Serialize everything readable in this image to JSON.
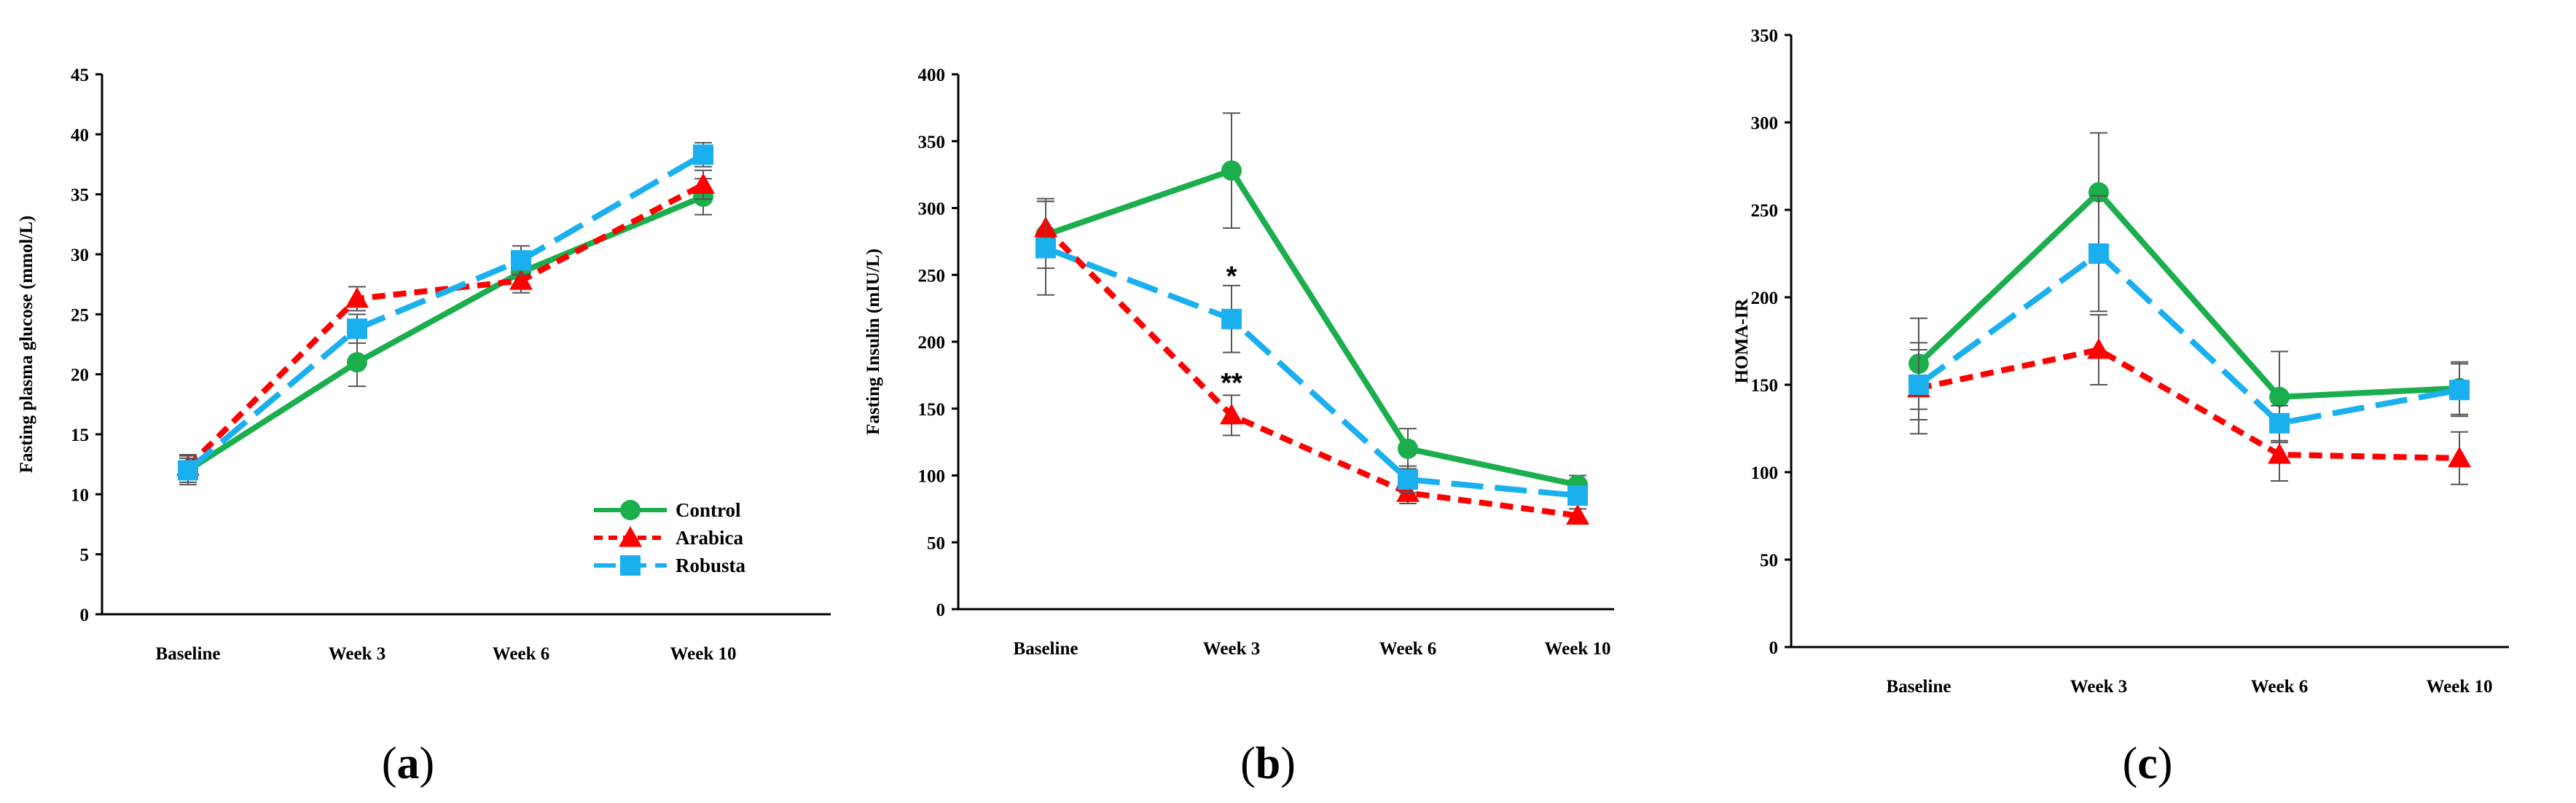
{
  "chart_data": [
    {
      "type": "line",
      "panel_label": "(a)",
      "title": "",
      "xlabel": "",
      "ylabel": "Fasting plasma glucose (mmol/L)",
      "ylim": [
        0,
        45
      ],
      "yticks": [
        0,
        5,
        10,
        15,
        20,
        25,
        30,
        35,
        40,
        45
      ],
      "categories": [
        "Baseline",
        "Week 3",
        "Week 6",
        "Week 10"
      ],
      "legend_position": "bottom-right",
      "series": [
        {
          "name": "Control",
          "values": [
            12.0,
            21.0,
            28.5,
            34.8
          ],
          "errors": [
            1.2,
            2.0,
            1.0,
            1.5
          ]
        },
        {
          "name": "Arabica",
          "values": [
            12.3,
            26.3,
            27.8,
            35.8
          ],
          "errors": [
            1.0,
            1.0,
            1.0,
            1.2
          ]
        },
        {
          "name": "Robusta",
          "values": [
            12.0,
            23.8,
            29.5,
            38.3
          ],
          "errors": [
            1.0,
            1.2,
            1.2,
            1.0
          ]
        }
      ],
      "annotations": []
    },
    {
      "type": "line",
      "panel_label": "(b)",
      "title": "",
      "xlabel": "",
      "ylabel": "Fasting Insulin (mIU/L)",
      "ylim": [
        0,
        400
      ],
      "yticks": [
        0,
        50,
        100,
        150,
        200,
        250,
        300,
        350,
        400
      ],
      "categories": [
        "Baseline",
        "Week 3",
        "Week 6",
        "Week 10"
      ],
      "legend_position": "none",
      "series": [
        {
          "name": "Control",
          "values": [
            280,
            328,
            120,
            93
          ],
          "errors": [
            25,
            43,
            15,
            7
          ]
        },
        {
          "name": "Arabica",
          "values": [
            285,
            145,
            87,
            70
          ],
          "errors": [
            22,
            15,
            8,
            5
          ]
        },
        {
          "name": "Robusta",
          "values": [
            270,
            217,
            97,
            85
          ],
          "errors": [
            35,
            25,
            10,
            7
          ]
        }
      ],
      "annotations": [
        {
          "text": "*",
          "category": "Week 3",
          "y": 250
        },
        {
          "text": "**",
          "category": "Week 3",
          "y": 170
        }
      ]
    },
    {
      "type": "line",
      "panel_label": "(c)",
      "title": "",
      "xlabel": "",
      "ylabel": "HOMA-IR",
      "ylim": [
        0,
        350
      ],
      "yticks": [
        0,
        50,
        100,
        150,
        200,
        250,
        300,
        350
      ],
      "categories": [
        "Baseline",
        "Week 3",
        "Week 6",
        "Week 10"
      ],
      "legend_position": "none",
      "series": [
        {
          "name": "Control",
          "values": [
            162,
            260,
            143,
            148
          ],
          "errors": [
            26,
            34,
            26,
            15
          ]
        },
        {
          "name": "Arabica",
          "values": [
            148,
            170,
            110,
            108
          ],
          "errors": [
            26,
            20,
            15,
            15
          ]
        },
        {
          "name": "Robusta",
          "values": [
            150,
            225,
            128,
            147
          ],
          "errors": [
            20,
            33,
            10,
            15
          ]
        }
      ],
      "annotations": []
    }
  ],
  "series_styles": [
    {
      "name": "Control",
      "color": "#1aae4c",
      "dash": "none",
      "marker": "circle"
    },
    {
      "name": "Arabica",
      "color": "#ff0000",
      "dash": "short",
      "marker": "triangle"
    },
    {
      "name": "Robusta",
      "color": "#1ab0ef",
      "dash": "long",
      "marker": "square"
    }
  ]
}
